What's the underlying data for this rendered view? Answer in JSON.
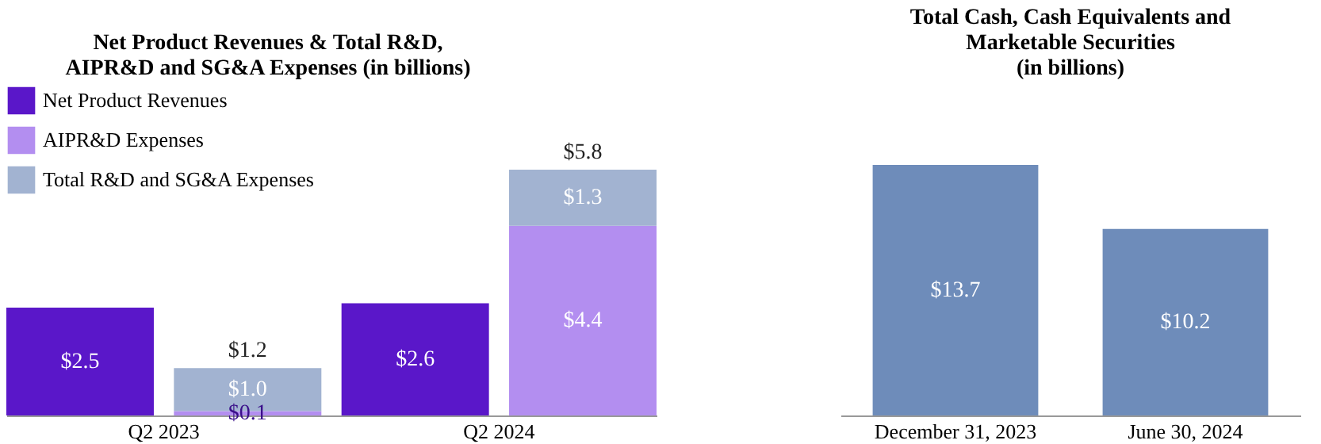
{
  "chart_data": [
    {
      "type": "bar",
      "title": "Net Product Revenues & Total R&D,\nAIPR&D and SG&A Expenses (in billions)",
      "categories": [
        "Q2 2023",
        null,
        "Q2 2024",
        null
      ],
      "stacked": true,
      "legend": "top left",
      "series": [
        {
          "name": "Net Product Revenues",
          "color": "#5a17c9",
          "values": [
            2.5,
            null,
            2.6,
            null
          ],
          "value_labels": [
            "$2.5",
            null,
            "$2.6",
            null
          ]
        },
        {
          "name": "AIPR&D Expenses",
          "color": "#b38ef0",
          "values": [
            null,
            0.1,
            null,
            4.4
          ],
          "value_labels": [
            null,
            "$0.1",
            null,
            "$4.4"
          ]
        },
        {
          "name": "Total R&D and SG&A Expenses",
          "color": "#a2b3d1",
          "values": [
            null,
            1.0,
            null,
            1.3
          ],
          "value_labels": [
            null,
            "$1.0",
            null,
            "$1.3"
          ]
        }
      ],
      "totals": [
        null,
        "$1.2",
        null,
        "$5.8"
      ]
    },
    {
      "type": "bar",
      "title": "Total Cash, Cash Equivalents and\nMarketable Securities\n(in billions)",
      "categories": [
        "December 31, 2023",
        "June 30, 2024"
      ],
      "values": [
        13.7,
        10.2
      ],
      "color": "#6e8cba",
      "value_labels": [
        "$13.7",
        "$10.2"
      ]
    }
  ]
}
